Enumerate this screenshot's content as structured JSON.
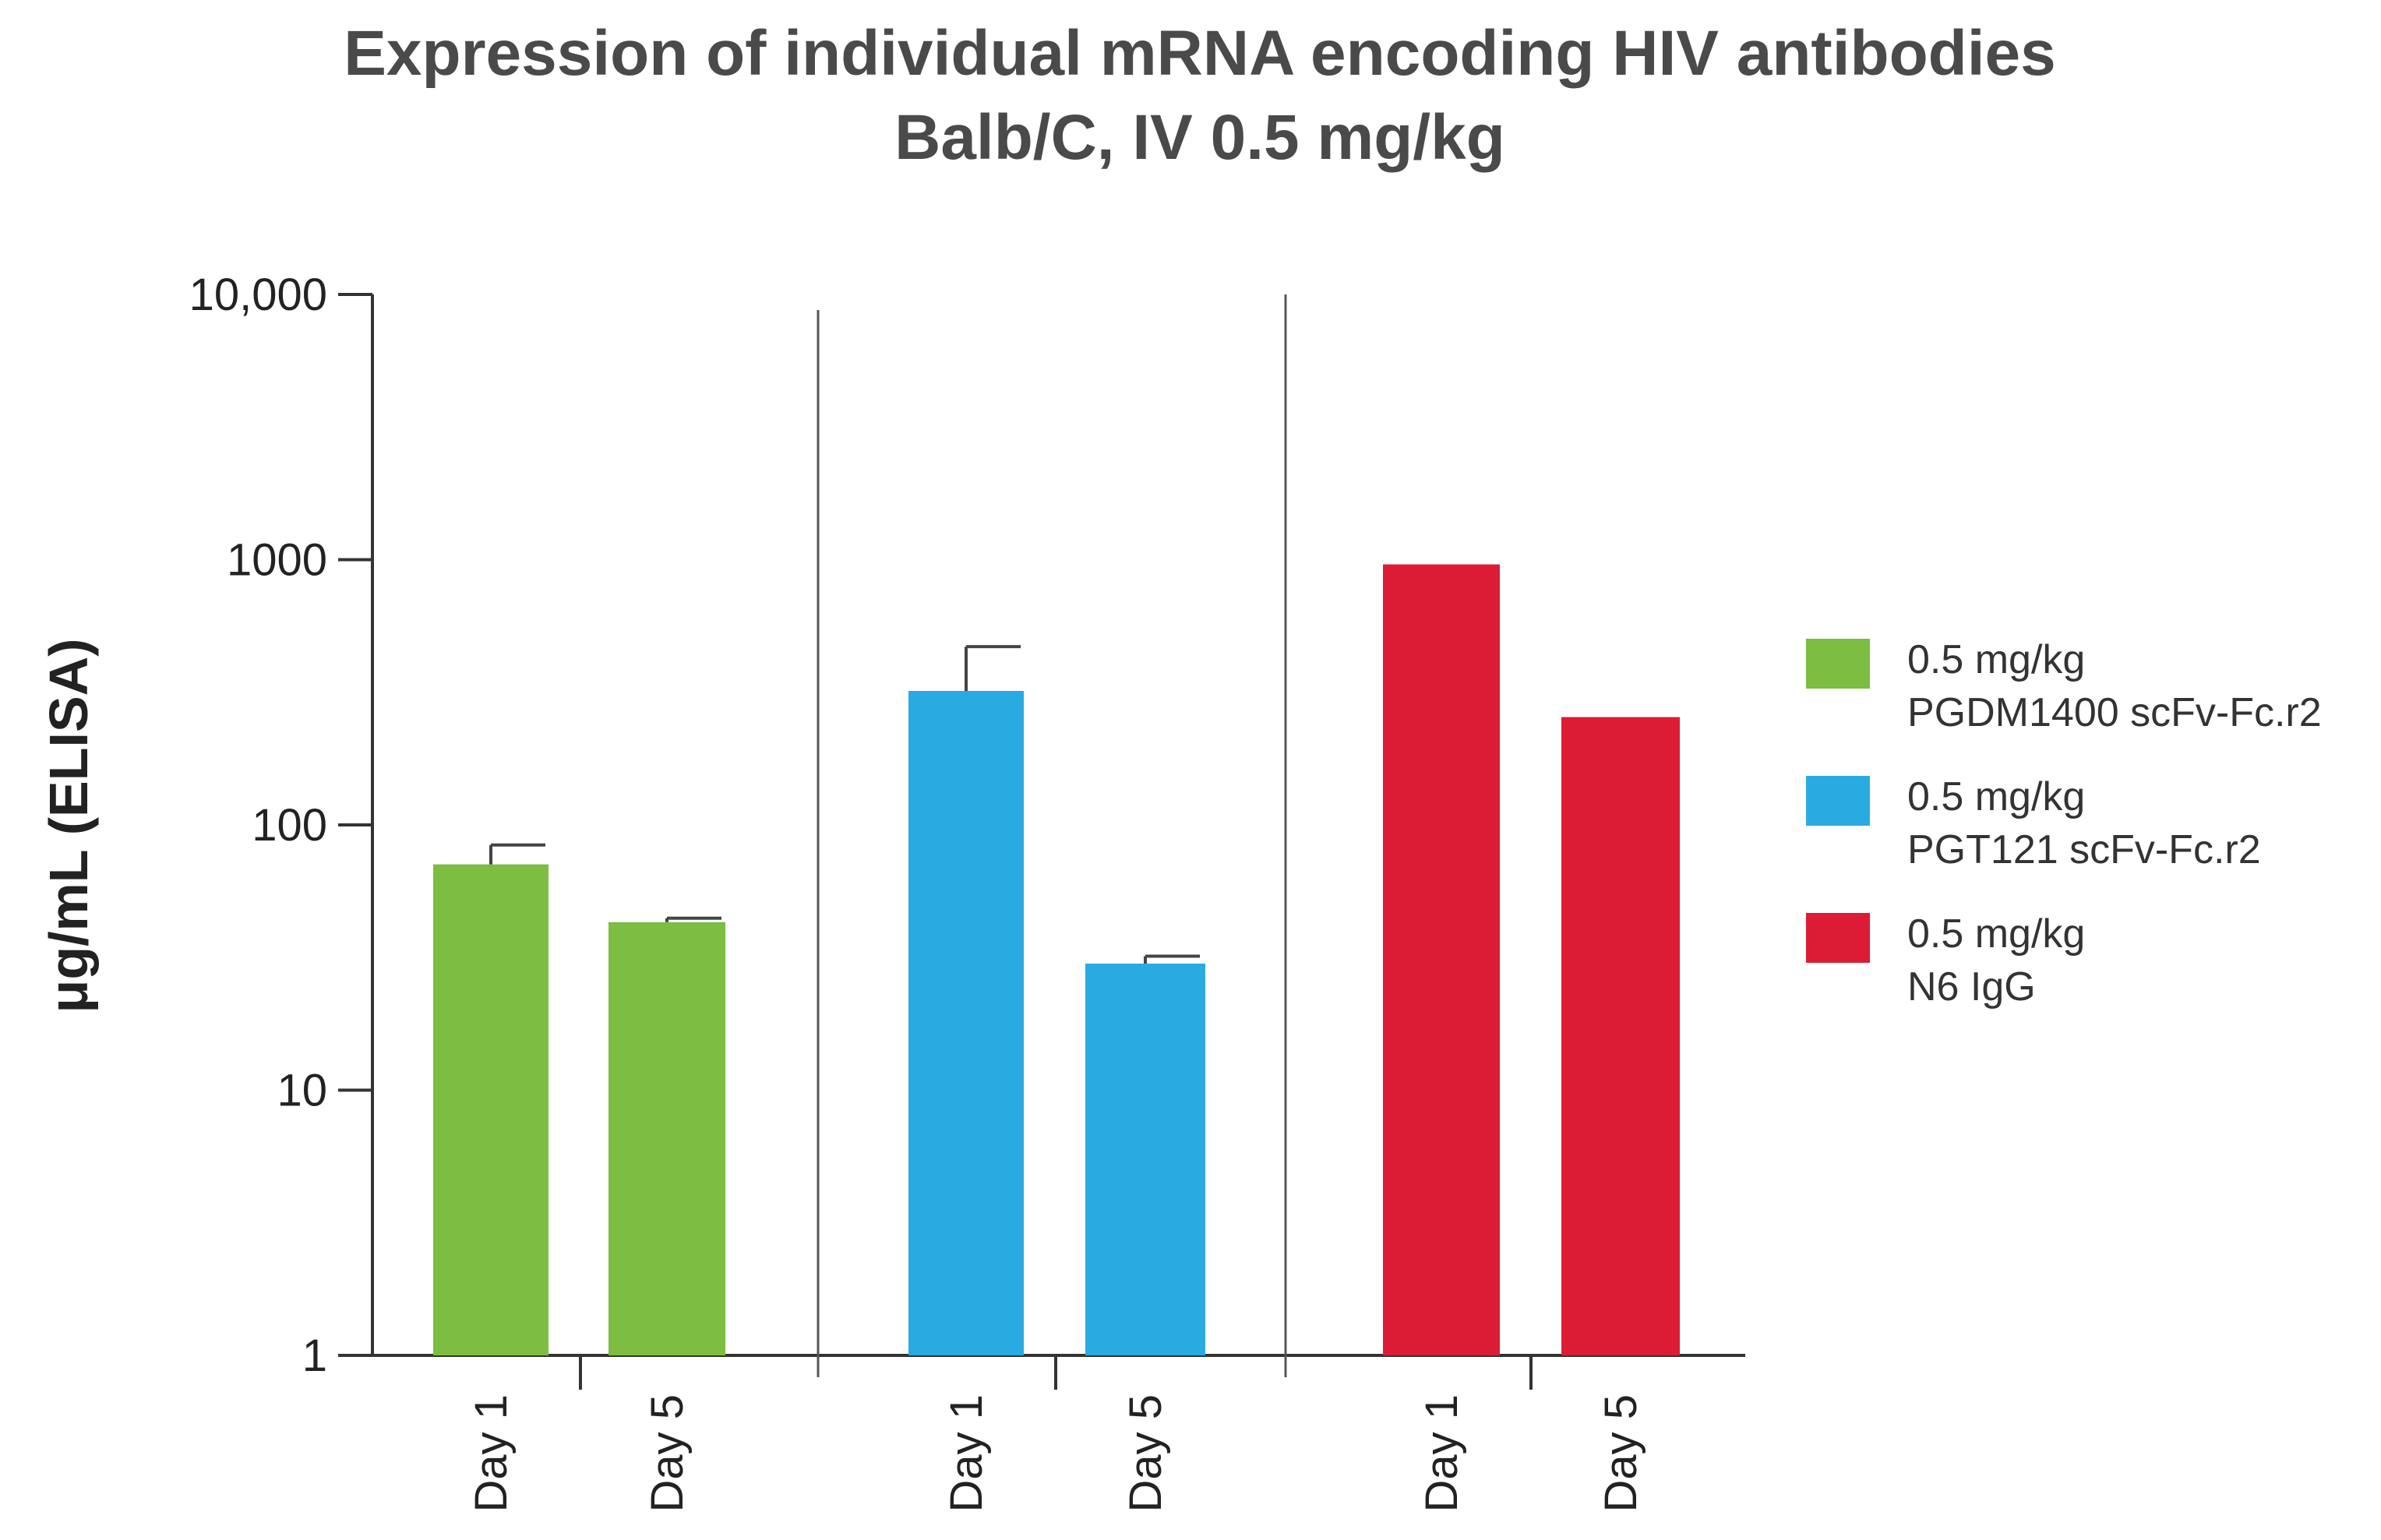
{
  "chart_data": {
    "type": "bar",
    "title": "Expression of individual mRNA encoding HIV antibodies",
    "subtitle": "Balb/C, IV 0.5 mg/kg",
    "xlabel": "",
    "ylabel": "μg/mL (ELISA)",
    "yscale": "log",
    "ylim": [
      1,
      10000
    ],
    "yticks": [
      {
        "value": 1,
        "label": "1"
      },
      {
        "value": 10,
        "label": "10"
      },
      {
        "value": 100,
        "label": "100"
      },
      {
        "value": 1000,
        "label": "1000"
      },
      {
        "value": 10000,
        "label": "10,000"
      }
    ],
    "categories": [
      "Day 1",
      "Day 5"
    ],
    "series": [
      {
        "name": "0.5 mg/kg PGDM1400 scFv-Fc.r2",
        "legend_line1": "0.5 mg/kg",
        "legend_line2": "PGDM1400 scFv-Fc.r2",
        "color": "#7cbd42",
        "values": [
          71,
          43
        ],
        "errors": [
          13,
          1.5
        ]
      },
      {
        "name": "0.5 mg/kg PGT121 scFv-Fc.r2",
        "legend_line1": "0.5 mg/kg",
        "legend_line2": "PGT121 scFv-Fc.r2",
        "color": "#29abe2",
        "values": [
          320,
          30
        ],
        "errors": [
          150,
          2
        ]
      },
      {
        "name": "0.5 mg/kg N6 IgG",
        "legend_line1": "0.5 mg/kg",
        "legend_line2": "N6 IgG",
        "color": "#dc1c35",
        "values": [
          960,
          255
        ],
        "errors": [
          0,
          0
        ]
      }
    ],
    "legend_position": "right",
    "grid": false
  }
}
